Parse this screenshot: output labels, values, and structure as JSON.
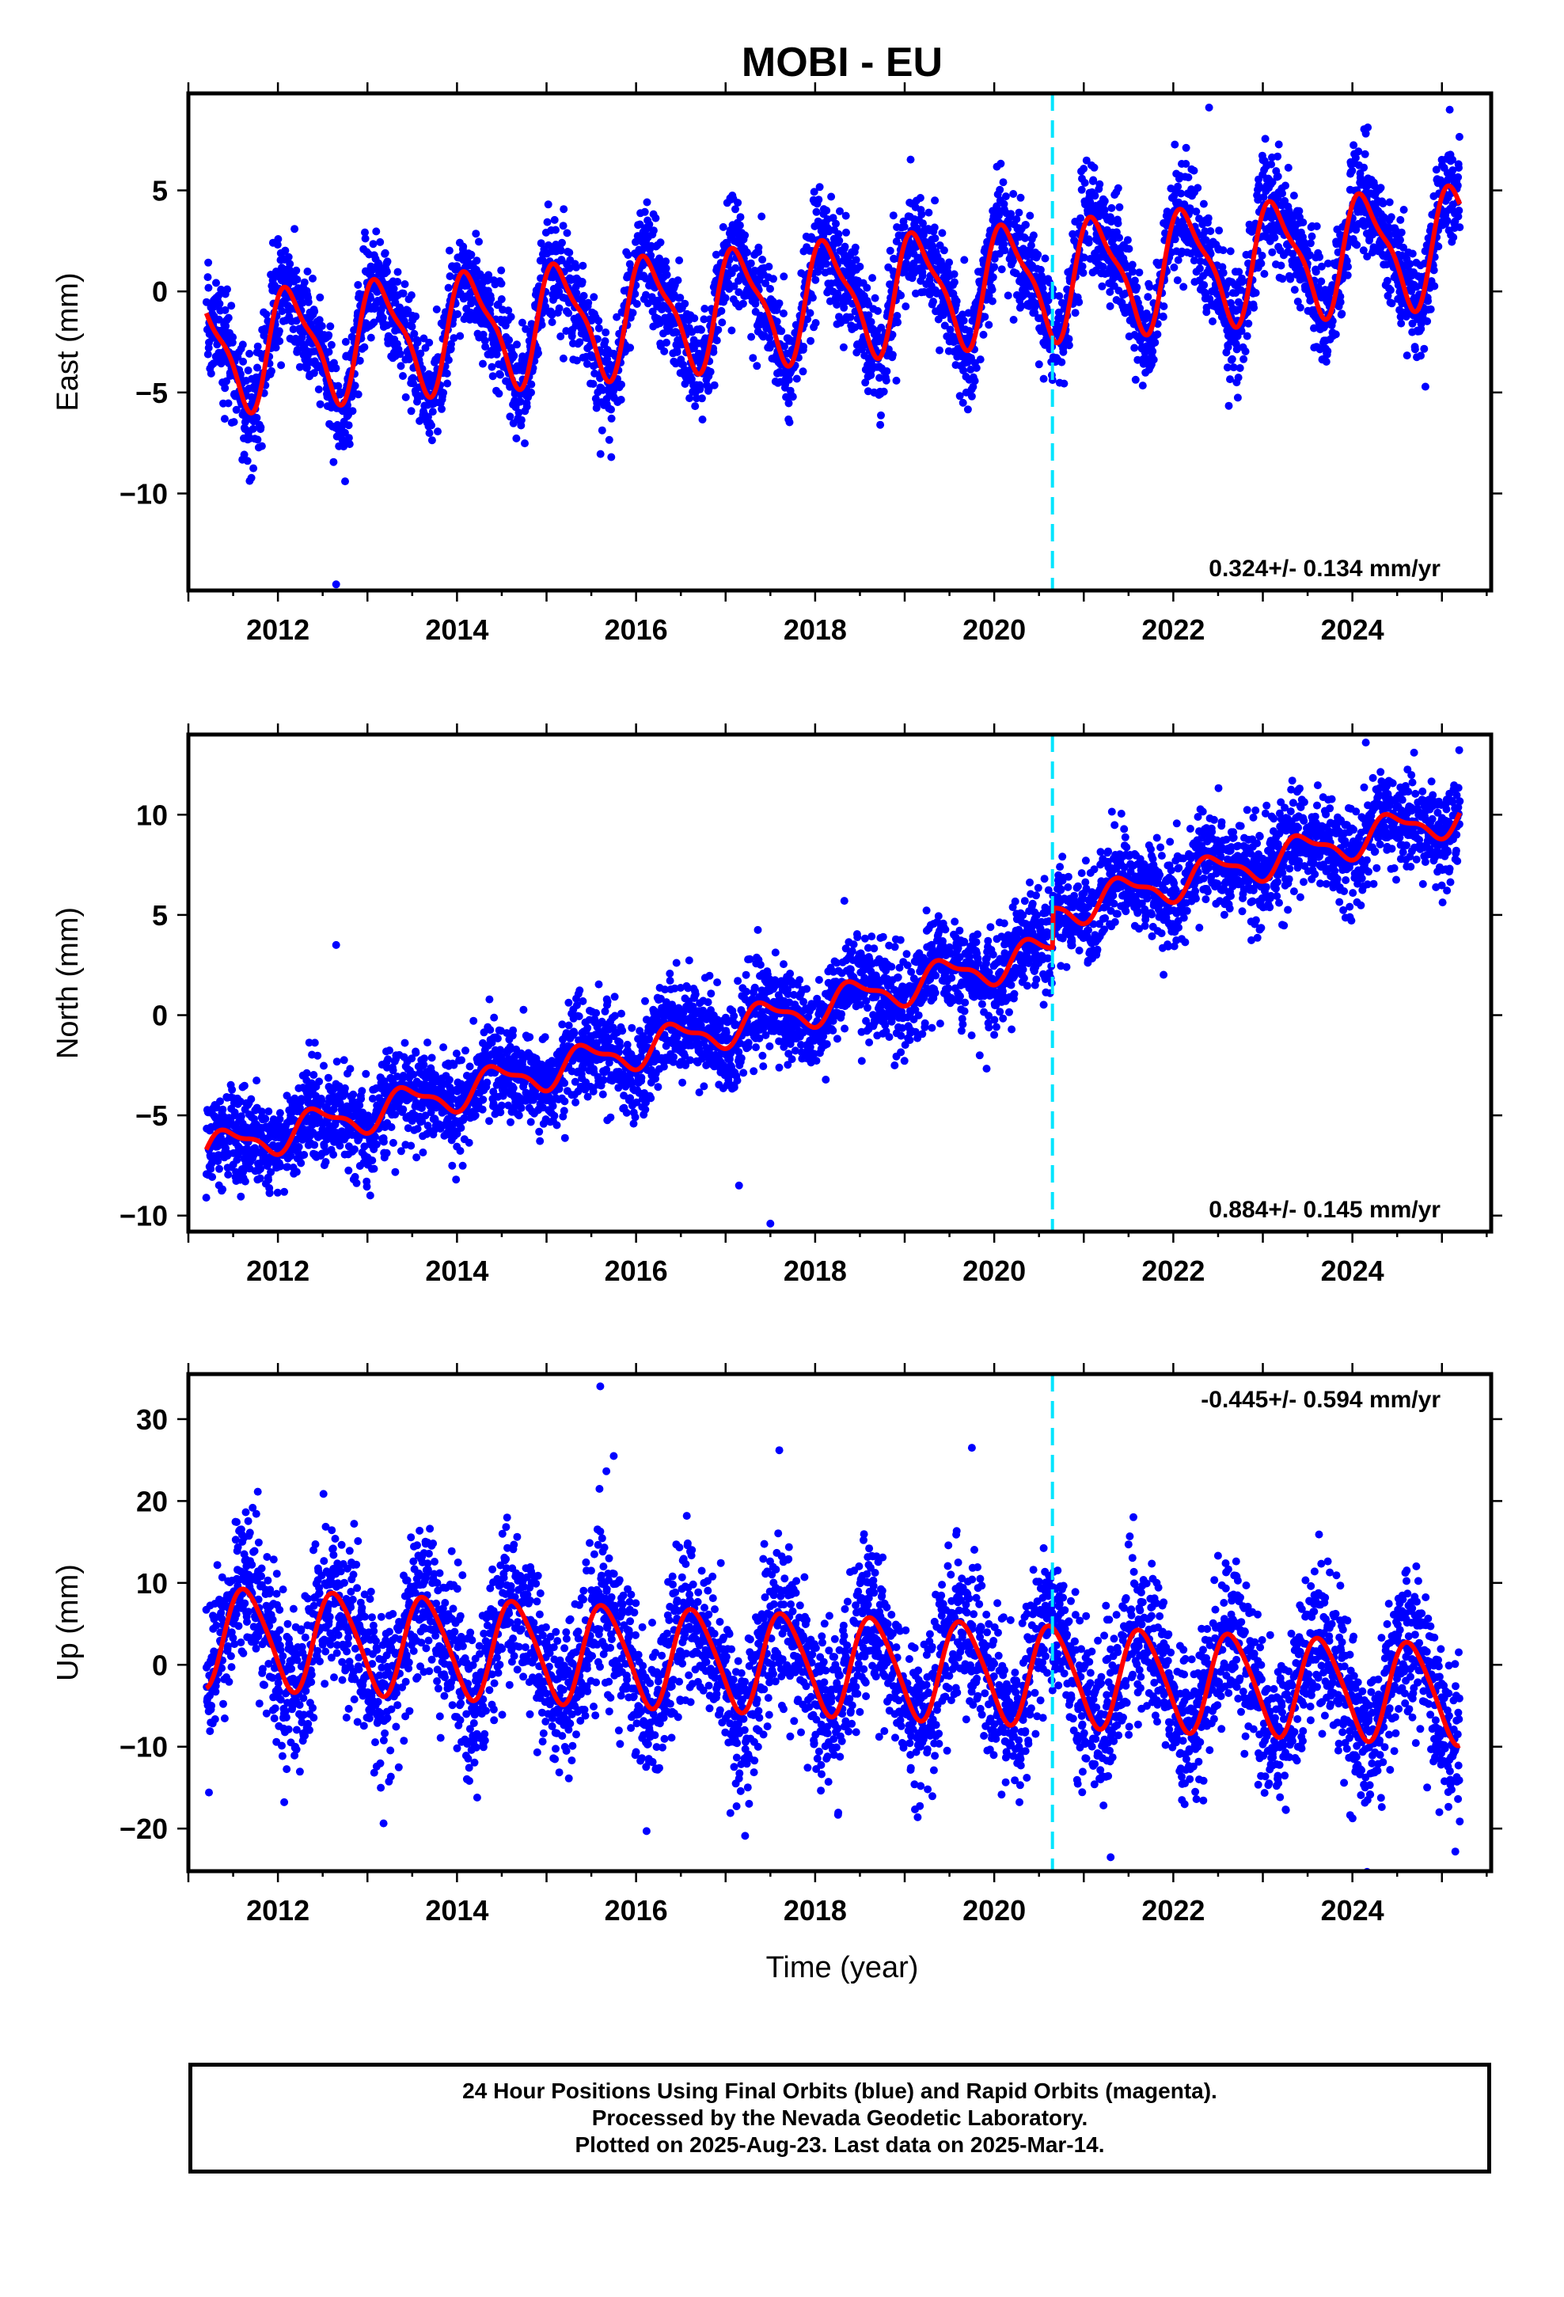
{
  "chart_data": {
    "type": "scatter",
    "title": "MOBI - EU",
    "xlabel": "Time (year)",
    "xlim": [
      2011.0,
      2025.55
    ],
    "xticks": [
      2012,
      2014,
      2016,
      2018,
      2020,
      2022,
      2024
    ],
    "vertical_line_x": 2020.65,
    "colors": {
      "points": "#0000ff",
      "fit": "#ff0000",
      "break_line": "#00e5ff",
      "frame": "#000000"
    },
    "grid": false,
    "panels": [
      {
        "name": "east",
        "ylabel": "East (mm)",
        "ylim": [
          -14.8,
          9.8
        ],
        "yticks": [
          -10,
          -5,
          0,
          5
        ],
        "rate_text": "0.324+/- 0.134 mm/yr",
        "rate_position": "bottom-right",
        "fit_model": {
          "x0": 2011.2,
          "x1": 2025.2,
          "y0": -3.0,
          "y1": 2.4,
          "amp_annual": 2.7,
          "phase_annual": 2012.15,
          "amp_semiannual": 0.8,
          "phase_semiannual": 2012.0
        },
        "scatter_sd": 1.3,
        "outliers": [
          [
            2012.65,
            -14.5
          ],
          [
            2012.75,
            -9.4
          ],
          [
            2022.4,
            9.1
          ]
        ]
      },
      {
        "name": "north",
        "ylabel": "North (mm)",
        "ylim": [
          -10.8,
          14.0
        ],
        "yticks": [
          -10,
          -5,
          0,
          5,
          10
        ],
        "rate_text": "0.884+/- 0.145 mm/yr",
        "rate_position": "bottom-right",
        "fit_model": {
          "x0": 2011.2,
          "x1": 2025.2,
          "y0": -5.8,
          "y1": 9.0,
          "amp_annual": 0.8,
          "phase_annual": 2011.45,
          "amp_semiannual": 0.3,
          "phase_semiannual": 2011.3,
          "step_at": 2020.65,
          "step": 2.0
        },
        "scatter_sd": 1.2,
        "outliers": [
          [
            2012.65,
            3.5
          ],
          [
            2017.15,
            -8.5
          ],
          [
            2017.5,
            -10.4
          ],
          [
            2024.15,
            13.6
          ]
        ]
      },
      {
        "name": "up",
        "ylabel": "Up (mm)",
        "ylim": [
          -25.2,
          35.5
        ],
        "yticks": [
          -20,
          -10,
          0,
          10,
          20,
          30
        ],
        "rate_text": "-0.445+/- 0.594 mm/yr",
        "rate_position": "top-right",
        "fit_model": {
          "x0": 2011.2,
          "x1": 2025.2,
          "y0": 3.5,
          "y1": -3.5,
          "amp_annual": 6.0,
          "phase_annual": 2011.65,
          "amp_semiannual": 0.8,
          "phase_semiannual": 2011.5
        },
        "scatter_sd": 4.8,
        "outliers": [
          [
            2015.6,
            34.0
          ],
          [
            2015.75,
            25.5
          ],
          [
            2017.6,
            26.2
          ],
          [
            2019.75,
            26.5
          ],
          [
            2021.3,
            -23.5
          ],
          [
            2025.15,
            -22.8
          ]
        ]
      }
    ]
  },
  "footer": {
    "line1": "24 Hour Positions Using Final Orbits (blue) and Rapid Orbits (magenta).",
    "line2": "Processed by the Nevada Geodetic Laboratory.",
    "line3": "Plotted on 2025-Aug-23. Last data on 2025-Mar-14."
  }
}
